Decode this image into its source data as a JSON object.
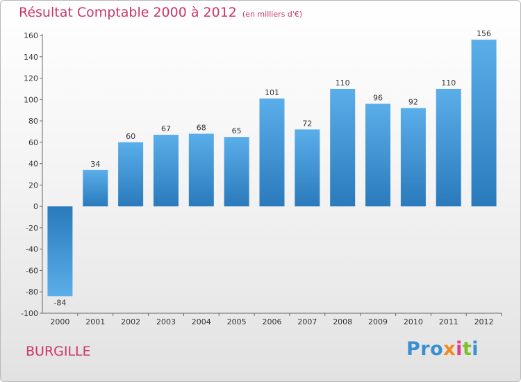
{
  "chart_data": {
    "type": "bar",
    "title": "Résultat Comptable 2000 à 2012",
    "subtitle": "(en milliers d'€)",
    "categories": [
      "2000",
      "2001",
      "2002",
      "2003",
      "2004",
      "2005",
      "2006",
      "2007",
      "2008",
      "2009",
      "2010",
      "2011",
      "2012"
    ],
    "values": [
      -84,
      34,
      60,
      67,
      68,
      65,
      101,
      72,
      110,
      96,
      92,
      110,
      156
    ],
    "ylim": [
      -100,
      160
    ],
    "yticks": [
      160,
      140,
      120,
      100,
      80,
      60,
      40,
      20,
      0,
      -20,
      -40,
      -60,
      -80,
      -100
    ],
    "xlabel": "",
    "ylabel": "",
    "grid": false,
    "bar_color": "#3a8ed6"
  },
  "place_name": "BURGILLE",
  "logo": {
    "p1": "Pro",
    "p2": "x",
    "p3": "i",
    "p4": "t",
    "p5": "i"
  }
}
